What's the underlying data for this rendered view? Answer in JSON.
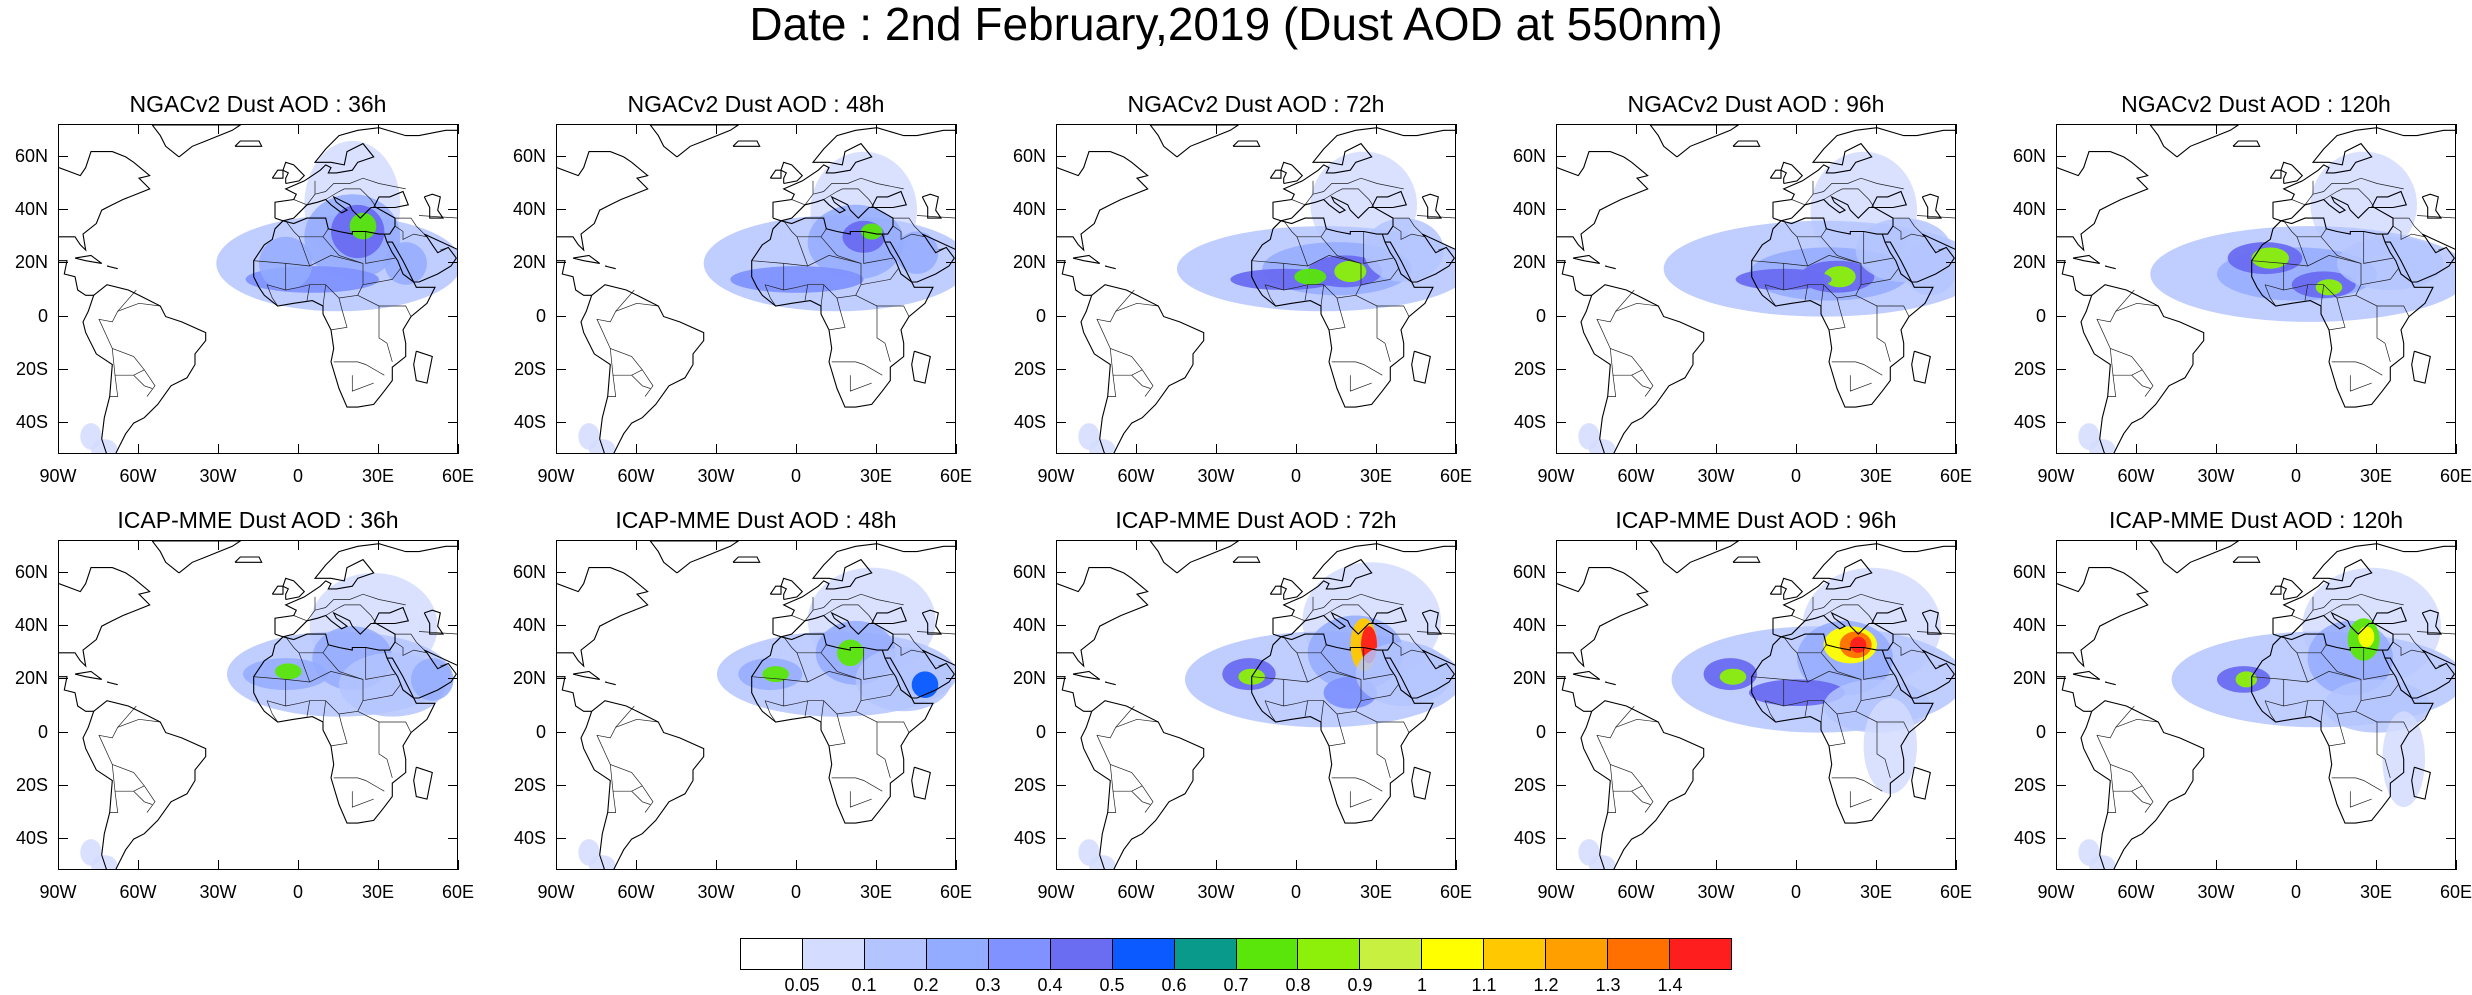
{
  "title": "Date : 2nd February,2019 (Dust AOD at 550nm)",
  "panels": [
    {
      "title": "NGACv2 Dust AOD : 36h",
      "model": "NGACv2",
      "lead": "36h"
    },
    {
      "title": "NGACv2 Dust AOD : 48h",
      "model": "NGACv2",
      "lead": "48h"
    },
    {
      "title": "NGACv2 Dust AOD : 72h",
      "model": "NGACv2",
      "lead": "72h"
    },
    {
      "title": "NGACv2 Dust AOD : 96h",
      "model": "NGACv2",
      "lead": "96h"
    },
    {
      "title": "NGACv2 Dust AOD : 120h",
      "model": "NGACv2",
      "lead": "120h"
    },
    {
      "title": "ICAP-MME Dust AOD : 36h",
      "model": "ICAP-MME",
      "lead": "36h"
    },
    {
      "title": "ICAP-MME Dust AOD : 48h",
      "model": "ICAP-MME",
      "lead": "48h"
    },
    {
      "title": "ICAP-MME Dust AOD : 72h",
      "model": "ICAP-MME",
      "lead": "72h"
    },
    {
      "title": "ICAP-MME Dust AOD : 96h",
      "model": "ICAP-MME",
      "lead": "96h"
    },
    {
      "title": "ICAP-MME Dust AOD : 120h",
      "model": "ICAP-MME",
      "lead": "120h"
    }
  ],
  "axes": {
    "lat_labels": [
      "60N",
      "40N",
      "20N",
      "0",
      "20S",
      "40S"
    ],
    "lon_labels": [
      "90W",
      "60W",
      "30W",
      "0",
      "30E",
      "60E"
    ],
    "lat_range": [
      -52,
      72
    ],
    "lon_range": [
      -90,
      60
    ]
  },
  "colorbar": {
    "labels": [
      "0.05",
      "0.1",
      "0.2",
      "0.3",
      "0.4",
      "0.5",
      "0.6",
      "0.7",
      "0.8",
      "0.9",
      "1",
      "1.1",
      "1.2",
      "1.3",
      "1.4"
    ],
    "colors": [
      "#ffffff",
      "#d4dcff",
      "#b4c4ff",
      "#94acff",
      "#7f92ff",
      "#6a6cf2",
      "#0a5aff",
      "#0a9a8c",
      "#5ae60a",
      "#8cf00a",
      "#c8f040",
      "#ffff00",
      "#ffc800",
      "#ffa000",
      "#ff7000",
      "#ff1e1e"
    ]
  }
}
